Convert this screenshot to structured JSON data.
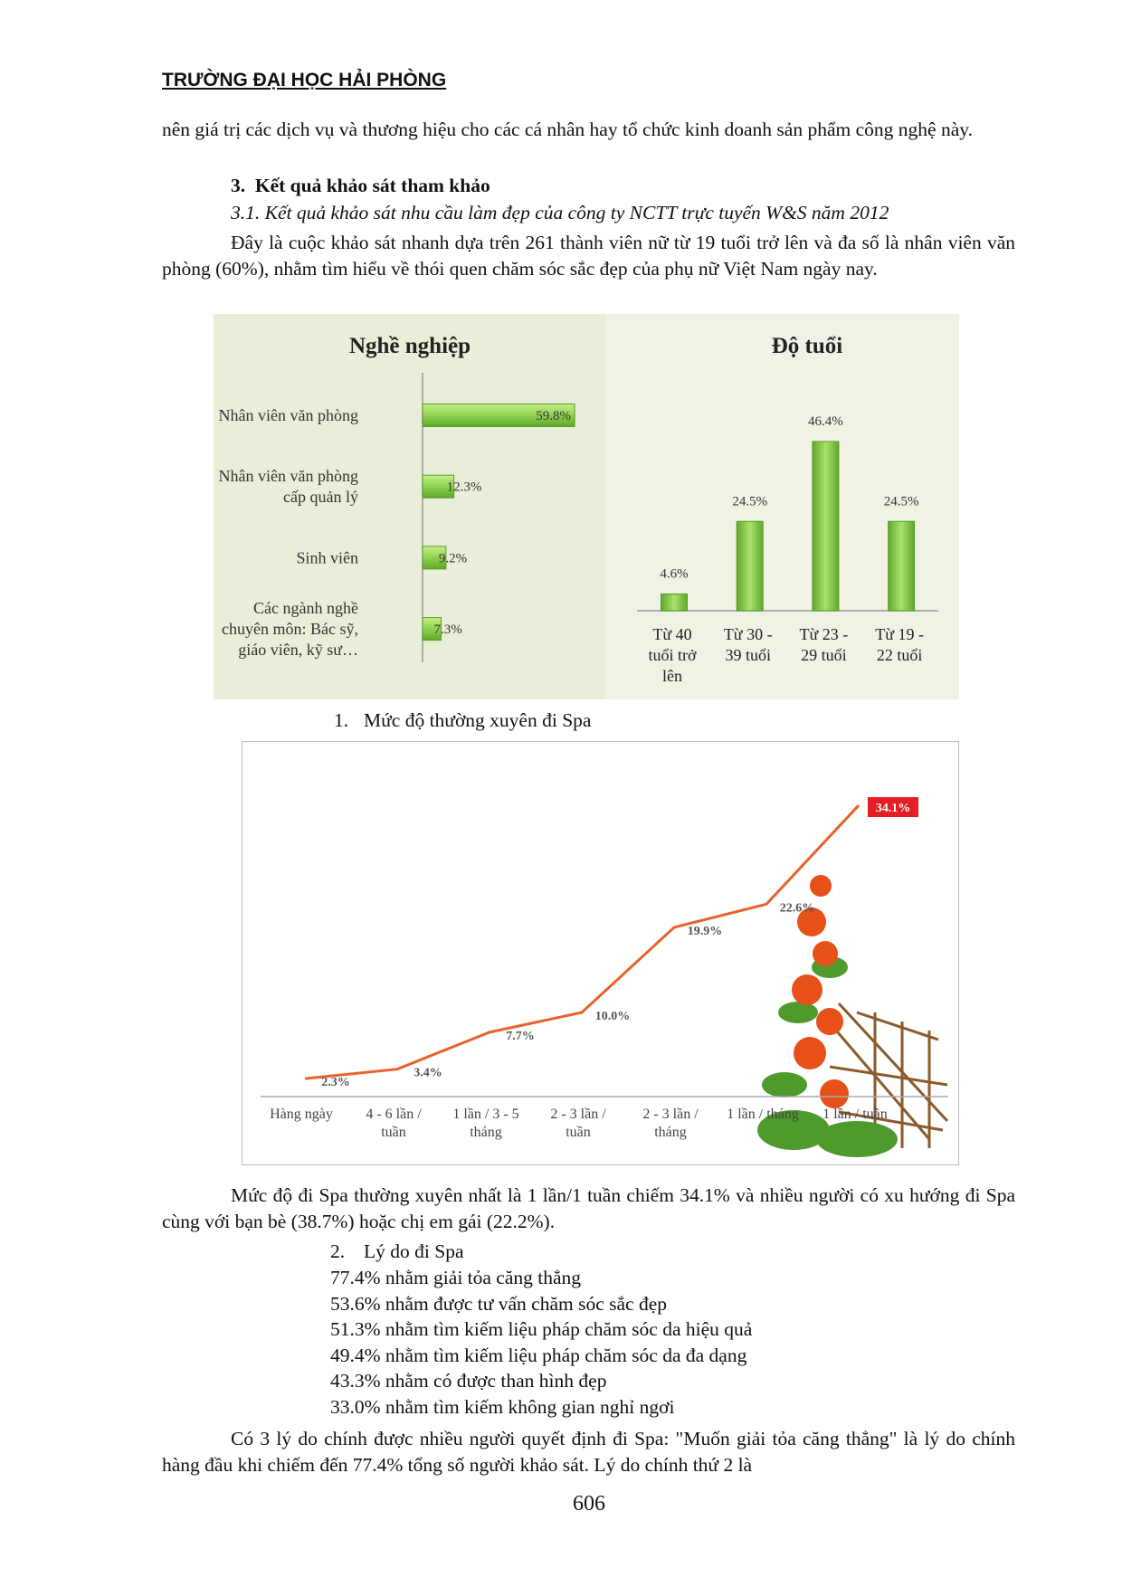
{
  "header": "TRƯỜNG ĐẠI HỌC HẢI PHÒNG",
  "intro_text": "nên giá trị các dịch vụ và thương hiệu cho các cá nhân hay tổ chức kinh doanh sản phẩm công nghệ này.",
  "section": {
    "number": "3.",
    "title": "Kết quả khảo sát tham khảo"
  },
  "subsection": "3.1. Kết quả khảo sát nhu cầu làm đẹp của công ty NCTT trực tuyến W&S năm 2012",
  "survey_text": "Đây là cuộc khảo sát nhanh dựa trên 261 thành viên nữ từ 19 tuổi trở lên và đa số là nhân viên văn phòng (60%), nhằm tìm hiểu về thói quen chăm sóc sắc đẹp của phụ nữ Việt Nam ngày nay.",
  "items": [
    {
      "number": "1.",
      "text": "Mức độ thường xuyên đi Spa"
    },
    {
      "number": "2.",
      "text": "Lý do đi Spa"
    }
  ],
  "frequency_text": "Mức độ đi Spa thường xuyên nhất là 1 lần/1 tuần chiếm 34.1% và nhiều người có xu hướng đi Spa cùng với bạn bè (38.7%) hoặc chị em gái (22.2%).",
  "reasons": [
    "77.4% nhằm giải tỏa căng thẳng",
    "53.6% nhằm được tư vấn chăm sóc sắc đẹp",
    "51.3% nhằm tìm kiếm liệu pháp chăm sóc da hiệu quả",
    "49.4% nhằm tìm kiếm liệu pháp chăm sóc da đa dạng",
    "43.3% nhằm có được than hình đẹp",
    "33.0% nhằm tìm kiếm không gian nghỉ ngơi"
  ],
  "conclusion_text": "Có 3 lý do chính được nhiều người quyết định đi Spa: \"Muốn giải tỏa căng thẳng\" là lý do chính hàng đầu khi chiếm đến 77.4% tổng số người khảo sát. Lý do chính thứ 2 là",
  "page_number": "606",
  "chart_data": [
    {
      "type": "bar",
      "orientation": "horizontal",
      "title": "Nghề nghiệp",
      "categories": [
        "Nhân viên văn phòng",
        "Nhân viên văn phòng\ncấp quản lý",
        "Sinh viên",
        "Các ngành nghề\nchuyên môn: Bác sỹ,\ngiáo viên, kỹ sư…"
      ],
      "values": [
        59.8,
        12.3,
        9.2,
        7.3
      ],
      "value_labels": [
        "59.8%",
        "12.3%",
        "9.2%",
        "7.3%"
      ],
      "color": "#8fd14f"
    },
    {
      "type": "bar",
      "orientation": "vertical",
      "title": "Độ tuổi",
      "categories": [
        "Từ 40\ntuổi trở\nlên",
        "Từ 30 -\n39 tuổi",
        "Từ 23 -\n29 tuổi",
        "Từ 19 -\n22 tuổi"
      ],
      "values": [
        4.6,
        24.5,
        46.4,
        24.5
      ],
      "value_labels": [
        "4.6%",
        "24.5%",
        "46.4%",
        "24.5%"
      ],
      "color": "#8fd14f"
    },
    {
      "type": "line",
      "categories": [
        "Hàng ngày",
        "4 - 6 lần /\ntuần",
        "1 lần / 3 - 5\ntháng",
        "2 - 3 lần /\ntuần",
        "2 - 3 lần /\ntháng",
        "1 lần / tháng",
        "1 lần / tuần"
      ],
      "values": [
        2.3,
        3.4,
        7.7,
        10.0,
        19.9,
        22.6,
        34.1
      ],
      "value_labels": [
        "2.3%",
        "3.4%",
        "7.7%",
        "10.0%",
        "19.9%",
        "22.6%",
        "34.1%"
      ],
      "color": "#e8622a"
    }
  ]
}
